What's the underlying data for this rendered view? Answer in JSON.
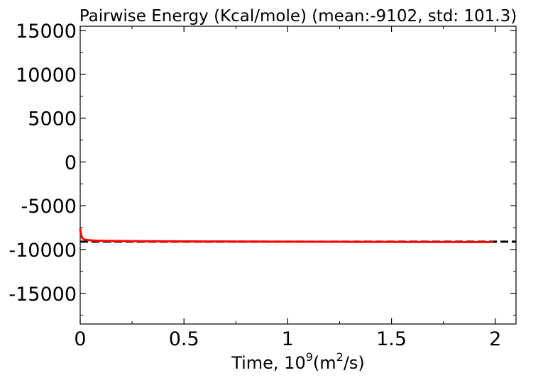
{
  "chart_data": {
    "type": "line",
    "title": "Pairwise Energy (Kcal/mole) (mean:-9102, std: 101.3)",
    "xlabel": {
      "base": "Time, 10",
      "exp": "9",
      "unit_pre": "(m",
      "unit_exp": "2",
      "unit_post": "/s)"
    },
    "ylabel": "",
    "xlim": [
      0,
      2.1
    ],
    "ylim": [
      -18500,
      15500
    ],
    "xticks": [
      0,
      0.5,
      1,
      1.5,
      2
    ],
    "xtick_labels": [
      "0",
      "0.5",
      "1",
      "1.5",
      "2"
    ],
    "yticks": [
      15000,
      10000,
      5000,
      0,
      -5000,
      -10000,
      -15000
    ],
    "ytick_labels": [
      "15000",
      "10000",
      "5000",
      "0",
      "-5000",
      "-10000",
      "-15000"
    ],
    "grid": false,
    "legend": "none",
    "mean_line": {
      "y": -9102,
      "style": "dashed",
      "color": "#000000"
    },
    "series": [
      {
        "color": "#ff0000",
        "x": [
          0,
          0.002,
          0.005,
          0.01,
          0.02,
          0.03,
          0.05,
          0.07,
          0.1,
          0.15,
          0.2,
          0.25,
          0.3,
          0.35,
          0.4,
          0.45,
          0.5,
          0.55,
          0.6,
          0.65,
          0.7,
          0.75,
          0.8,
          0.85,
          0.9,
          0.95,
          1.0,
          1.05,
          1.1,
          1.15,
          1.2,
          1.25,
          1.3,
          1.35,
          1.4,
          1.45,
          1.5,
          1.55,
          1.6,
          1.65,
          1.7,
          1.75,
          1.8,
          1.85,
          1.9,
          1.95,
          1.99
        ],
        "y": [
          -7600,
          -8000,
          -8400,
          -8700,
          -8850,
          -8900,
          -8950,
          -8980,
          -9000,
          -9020,
          -9030,
          -9040,
          -9050,
          -9050,
          -9060,
          -9060,
          -9070,
          -9070,
          -9080,
          -9080,
          -9080,
          -9090,
          -9090,
          -9090,
          -9100,
          -9100,
          -9100,
          -9100,
          -9110,
          -9110,
          -9110,
          -9110,
          -9120,
          -9120,
          -9120,
          -9120,
          -9120,
          -9130,
          -9130,
          -9130,
          -9130,
          -9130,
          -9130,
          -9140,
          -9140,
          -9140,
          -9140
        ]
      }
    ]
  }
}
